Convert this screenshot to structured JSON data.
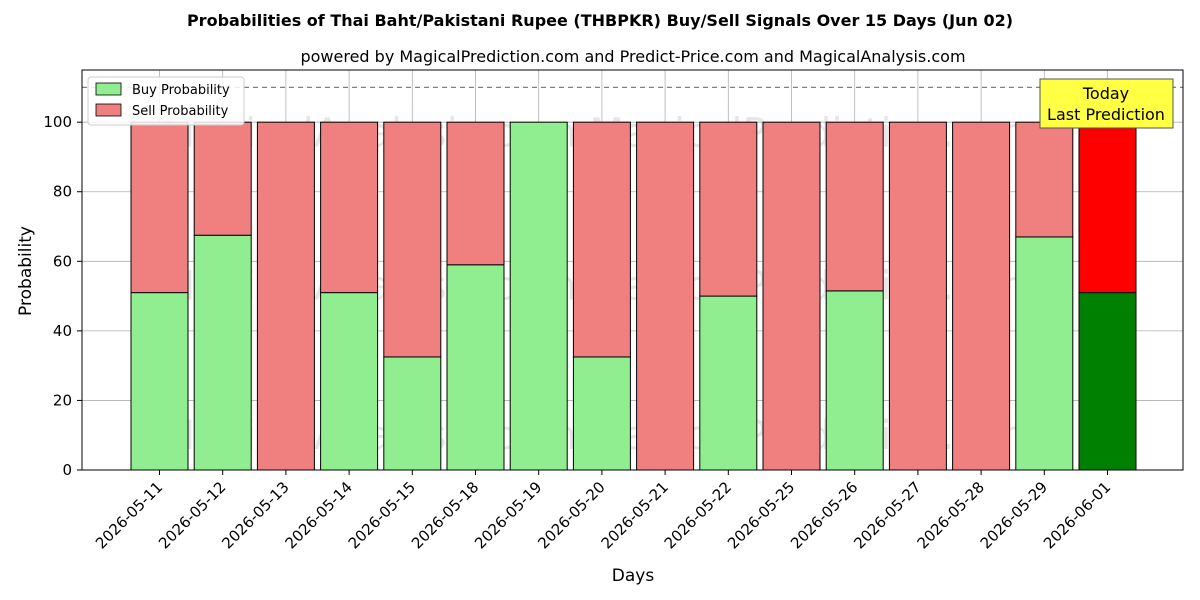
{
  "chart_data": {
    "type": "bar",
    "stacked": true,
    "title": "Probabilities of Thai Baht/Pakistani Rupee (THBPKR) Buy/Sell Signals Over 15 Days (Jun 02)",
    "subtitle": "powered by MagicalPrediction.com and Predict-Price.com and MagicalAnalysis.com",
    "xlabel": "Days",
    "ylabel": "Probability",
    "ylim": [
      0,
      115
    ],
    "yticks": [
      0,
      20,
      40,
      60,
      80,
      100
    ],
    "grid": true,
    "legend_position": "top-left",
    "categories": [
      "2026-05-11",
      "2026-05-12",
      "2026-05-13",
      "2026-05-14",
      "2026-05-15",
      "2026-05-18",
      "2026-05-19",
      "2026-05-20",
      "2026-05-21",
      "2026-05-22",
      "2026-05-25",
      "2026-05-26",
      "2026-05-27",
      "2026-05-28",
      "2026-05-29",
      "2026-06-01"
    ],
    "series": [
      {
        "name": "Buy Probability",
        "color": "#90ee90",
        "highlight_color": "#008000",
        "values": [
          51,
          67.5,
          0,
          51,
          32.5,
          59,
          100,
          32.5,
          0,
          50,
          0,
          51.5,
          0,
          0,
          67,
          51
        ]
      },
      {
        "name": "Sell Probability",
        "color": "#f08080",
        "highlight_color": "#ff0000",
        "values": [
          49,
          32.5,
          100,
          49,
          67.5,
          41,
          0,
          67.5,
          100,
          50,
          100,
          48.5,
          100,
          100,
          33,
          49
        ]
      }
    ],
    "highlight_index": 15,
    "reference_line": {
      "y": 110,
      "style": "dashed",
      "color": "#808080"
    },
    "annotation": {
      "line1": "Today",
      "line2": "Last Prediction",
      "background": "#ffff44"
    },
    "watermark": "MagicalAnalysis.com        MagicalPrediction.com"
  }
}
